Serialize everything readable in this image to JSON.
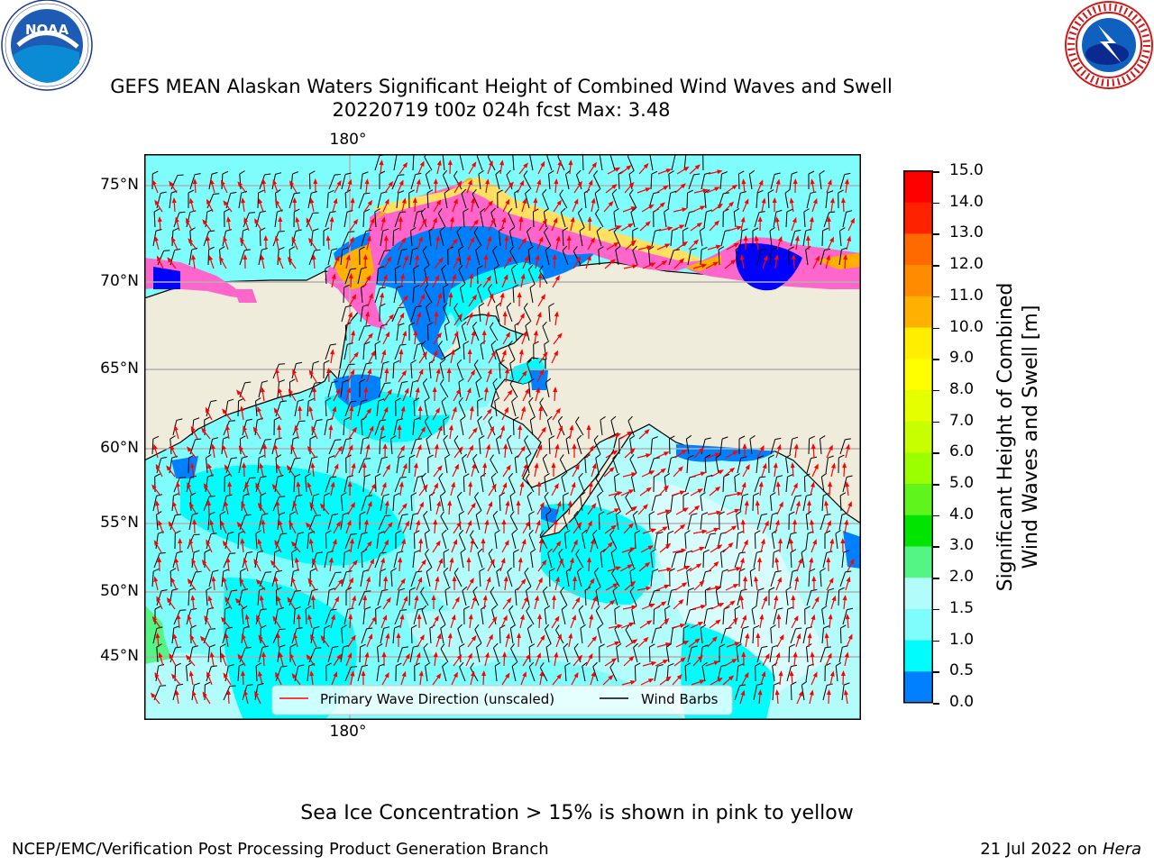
{
  "title": {
    "line1": "GEFS MEAN Alaskan Waters Significant Height of Combined Wind Waves and Swell",
    "line2": "20220719 t00z 024h fcst   Max: 3.48"
  },
  "logos": {
    "left": {
      "icon": "noaa-logo-icon",
      "text": "NOAA",
      "ring_text": "NATIONAL OCEANIC AND ATMOSPHERIC ADMINISTRATION · U.S. DEPARTMENT OF COMMERCE"
    },
    "right": {
      "icon": "nws-logo-icon",
      "ring_text": "NATIONAL WEATHER SERVICE"
    }
  },
  "map": {
    "lon_labels": {
      "top": "180°",
      "bottom": "180°"
    },
    "lat_labels": [
      "75°N",
      "70°N",
      "65°N",
      "60°N",
      "55°N",
      "50°N",
      "45°N"
    ],
    "colors": {
      "ocean_base": "#7ffcfc",
      "ocean_light": "#b2fcfc",
      "ocean_cyan": "#00fcfc",
      "ocean_blue": "#0080ff",
      "ice_pink": "#ff66cc",
      "ice_orange": "#ffb000",
      "ice_yellow": "#ffe060",
      "land": "#efecdc",
      "gridline": "#b0b0b0",
      "wave_arrow": "#ff0000",
      "wind_barb": "#000000"
    },
    "legend": {
      "primary_wave": "Primary Wave Direction (unscaled)",
      "wind_barbs": "Wind Barbs"
    }
  },
  "colorbar": {
    "label_line1": "Significant Height of Combined",
    "label_line2": "Wind Waves and Swell [m]",
    "ticks": [
      "15.0",
      "14.0",
      "13.0",
      "12.0",
      "11.0",
      "10.0",
      "9.0",
      "8.0",
      "7.0",
      "6.0",
      "5.0",
      "4.0",
      "3.0",
      "2.0",
      "1.5",
      "1.0",
      "0.5",
      "0.0"
    ],
    "colors_top_to_bottom": [
      "#ff0000",
      "#ff2200",
      "#ff5000",
      "#ff7800",
      "#ff9a00",
      "#ffbf00",
      "#ffee00",
      "#ffff00",
      "#e6ff00",
      "#c8ff00",
      "#9bff00",
      "#5ef41c",
      "#00e400",
      "#55f585",
      "#b2fcfc",
      "#7ffcfc",
      "#00fcfc",
      "#0080ff",
      "#0000ff"
    ]
  },
  "note": "Sea Ice Concentration > 15% is shown in pink to yellow",
  "footer": {
    "left": "NCEP/EMC/Verification Post Processing Product Generation Branch",
    "right_date": "21 Jul 2022 on ",
    "right_machine": "Hera"
  }
}
